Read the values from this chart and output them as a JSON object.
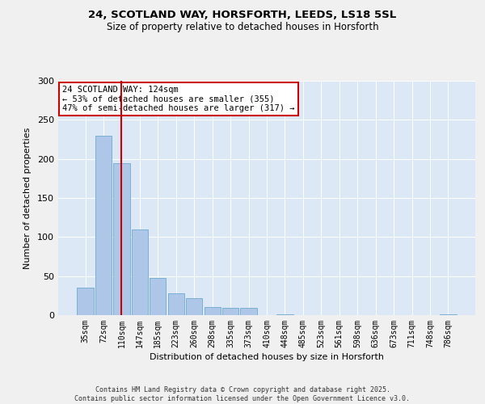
{
  "title1": "24, SCOTLAND WAY, HORSFORTH, LEEDS, LS18 5SL",
  "title2": "Size of property relative to detached houses in Horsforth",
  "xlabel": "Distribution of detached houses by size in Horsforth",
  "ylabel": "Number of detached properties",
  "categories": [
    "35sqm",
    "72sqm",
    "110sqm",
    "147sqm",
    "185sqm",
    "223sqm",
    "260sqm",
    "298sqm",
    "335sqm",
    "373sqm",
    "410sqm",
    "448sqm",
    "485sqm",
    "523sqm",
    "561sqm",
    "598sqm",
    "636sqm",
    "673sqm",
    "711sqm",
    "748sqm",
    "786sqm"
  ],
  "values": [
    35,
    230,
    195,
    110,
    48,
    28,
    22,
    10,
    9,
    9,
    0,
    1,
    0,
    0,
    0,
    0,
    0,
    0,
    0,
    0,
    1
  ],
  "bar_color": "#aec6e8",
  "bar_edge_color": "#7ab0d4",
  "bg_color": "#dce8f5",
  "grid_color": "#ffffff",
  "vline_x": 2,
  "vline_color": "#cc0000",
  "annotation_line1": "24 SCOTLAND WAY: 124sqm",
  "annotation_line2": "← 53% of detached houses are smaller (355)",
  "annotation_line3": "47% of semi-detached houses are larger (317) →",
  "annotation_box_edge_color": "#cc0000",
  "footer": "Contains HM Land Registry data © Crown copyright and database right 2025.\nContains public sector information licensed under the Open Government Licence v3.0.",
  "ylim": [
    0,
    300
  ],
  "yticks": [
    0,
    50,
    100,
    150,
    200,
    250,
    300
  ],
  "fig_bg": "#f0f0f0"
}
